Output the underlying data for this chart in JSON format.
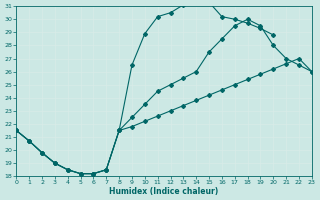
{
  "xlabel": "Humidex (Indice chaleur)",
  "xlim": [
    0,
    23
  ],
  "ylim": [
    18,
    31
  ],
  "xticks": [
    0,
    1,
    2,
    3,
    4,
    5,
    6,
    7,
    8,
    9,
    10,
    11,
    12,
    13,
    14,
    15,
    16,
    17,
    18,
    19,
    20,
    21,
    22,
    23
  ],
  "yticks": [
    18,
    19,
    20,
    21,
    22,
    23,
    24,
    25,
    26,
    27,
    28,
    29,
    30,
    31
  ],
  "bg": "#cce8e4",
  "lc": "#006666",
  "gc": "#b8d8d4",
  "curve1_x": [
    0,
    1,
    2,
    3,
    4,
    5,
    6,
    7,
    8,
    9,
    10,
    11,
    12,
    13,
    14,
    15,
    16,
    17,
    18,
    19,
    20
  ],
  "curve1_y": [
    21.5,
    20.7,
    19.8,
    19.0,
    18.5,
    18.2,
    18.2,
    18.5,
    21.5,
    26.5,
    28.9,
    30.2,
    30.5,
    31.1,
    31.3,
    31.3,
    30.2,
    30.0,
    29.7,
    29.3,
    28.8
  ],
  "curve2_x": [
    0,
    1,
    2,
    3,
    4,
    5,
    6,
    7,
    8,
    9,
    10,
    11,
    12,
    13,
    14,
    15,
    16,
    17,
    18,
    19,
    20,
    21,
    22,
    23
  ],
  "curve2_y": [
    21.5,
    20.7,
    19.8,
    19.0,
    18.5,
    18.2,
    18.2,
    18.5,
    21.5,
    22.5,
    23.5,
    24.5,
    25.0,
    25.5,
    26.0,
    27.5,
    28.5,
    29.5,
    30.0,
    29.5,
    28.0,
    27.0,
    26.5,
    26.0
  ],
  "curve3_x": [
    0,
    1,
    2,
    3,
    4,
    5,
    6,
    7,
    8,
    9,
    10,
    11,
    12,
    13,
    14,
    15,
    16,
    17,
    18,
    19,
    20,
    21,
    22,
    23
  ],
  "curve3_y": [
    21.5,
    20.7,
    19.8,
    19.0,
    18.5,
    18.2,
    18.2,
    18.5,
    21.5,
    21.8,
    22.2,
    22.6,
    23.0,
    23.4,
    23.8,
    24.2,
    24.6,
    25.0,
    25.4,
    25.8,
    26.2,
    26.6,
    27.0,
    26.0
  ]
}
